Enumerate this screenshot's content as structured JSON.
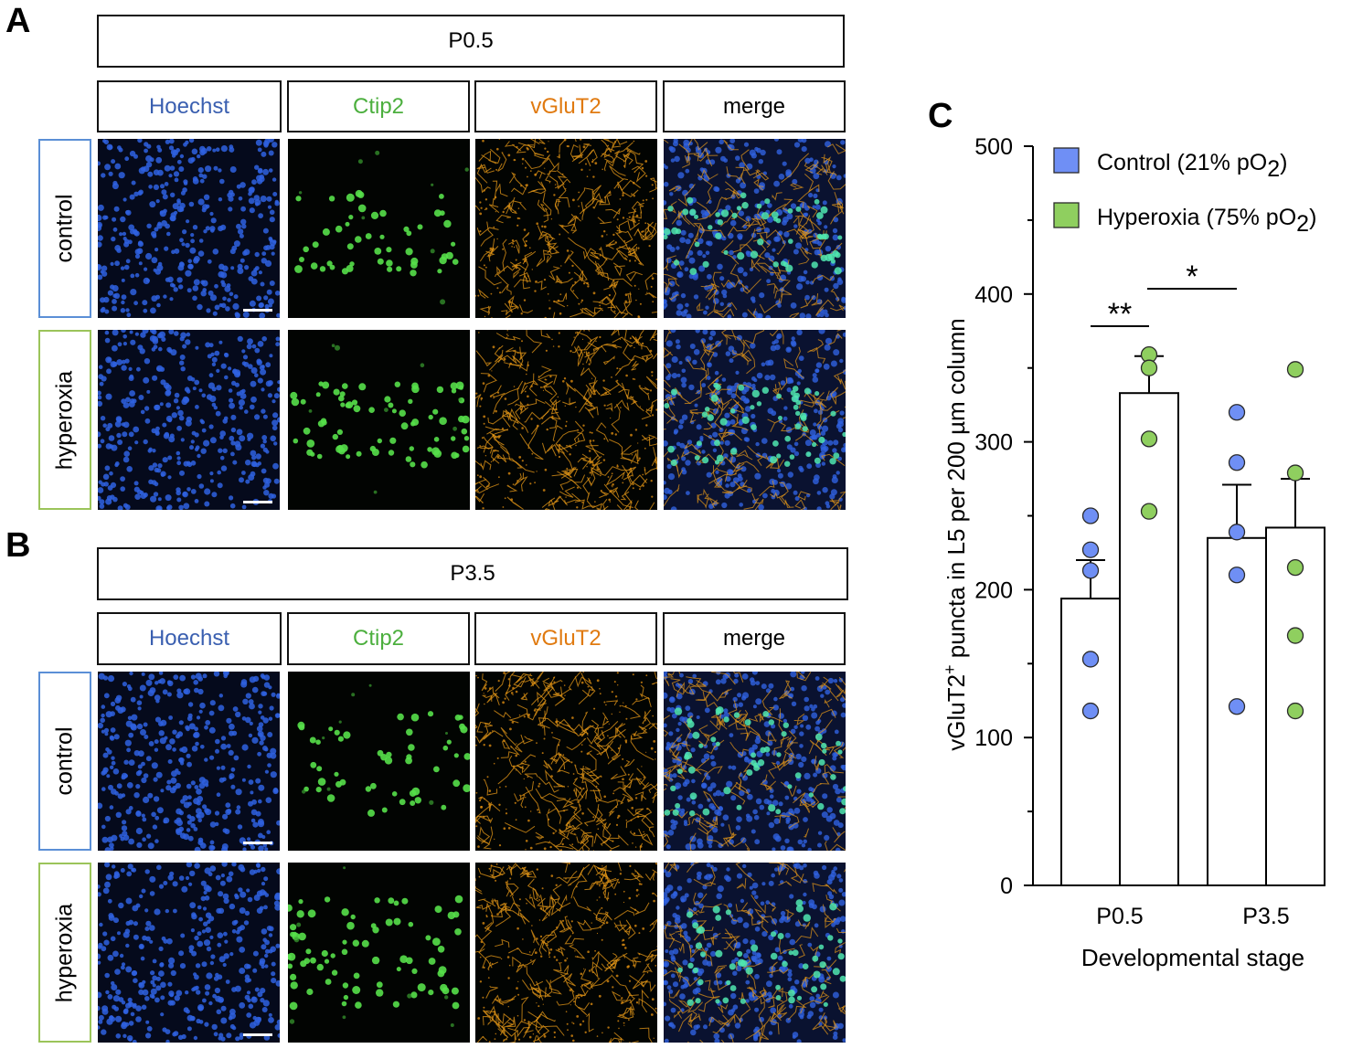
{
  "panels": {
    "a": {
      "letter": "A",
      "stage": "P0.5"
    },
    "b": {
      "letter": "B",
      "stage": "P3.5"
    },
    "c": {
      "letter": "C"
    }
  },
  "channels": [
    "Hoechst",
    "Ctip2",
    "vGluT2",
    "merge"
  ],
  "conditions": [
    "control",
    "hyperoxia"
  ],
  "colors": {
    "hoechst": "#3a5fb0",
    "ctip2": "#4caf3e",
    "vglut2": "#e07a10",
    "merge": "#000000",
    "control_border": "#5b8fd6",
    "hyperoxia_border": "#9bc45a",
    "control_dot": "#6f8ff5",
    "hyperoxia_dot": "#8fcf5f"
  },
  "chart_data": {
    "type": "bar",
    "categories": [
      "P0.5",
      "P3.5"
    ],
    "xlabel": "Developmental stage",
    "ylabel": "vGluT2+ puncta in L5 per 200 µm column",
    "ylabel_pre": "vGluT2",
    "ylabel_sup": "+",
    "ylabel_post": " puncta in L5 per 200 µm column",
    "ylim": [
      0,
      500
    ],
    "yticks": [
      "0",
      "100",
      "200",
      "300",
      "400",
      "500"
    ],
    "legend": [
      {
        "label_pre": "Control (21% pO",
        "sub": "2",
        "label_post": ")"
      },
      {
        "label_pre": "Hyperoxia (75% pO",
        "sub": "2",
        "label_post": ")"
      }
    ],
    "series": [
      {
        "name": "Control (21% pO2)",
        "values": [
          194,
          235
        ],
        "errors": [
          26,
          36
        ],
        "points": [
          [
            250,
            227,
            213,
            153,
            118
          ],
          [
            320,
            286,
            239,
            210,
            121
          ]
        ]
      },
      {
        "name": "Hyperoxia (75% pO2)",
        "values": [
          333,
          242
        ],
        "errors": [
          25,
          33
        ],
        "points": [
          [
            359,
            350,
            302,
            253
          ],
          [
            349,
            279,
            215,
            169,
            118
          ]
        ]
      }
    ],
    "significance": [
      {
        "label": "**",
        "between": "P0.5 control vs P0.5 hyperoxia"
      },
      {
        "label": "*",
        "between": "P0.5 hyperoxia vs P3.5 control"
      }
    ]
  }
}
